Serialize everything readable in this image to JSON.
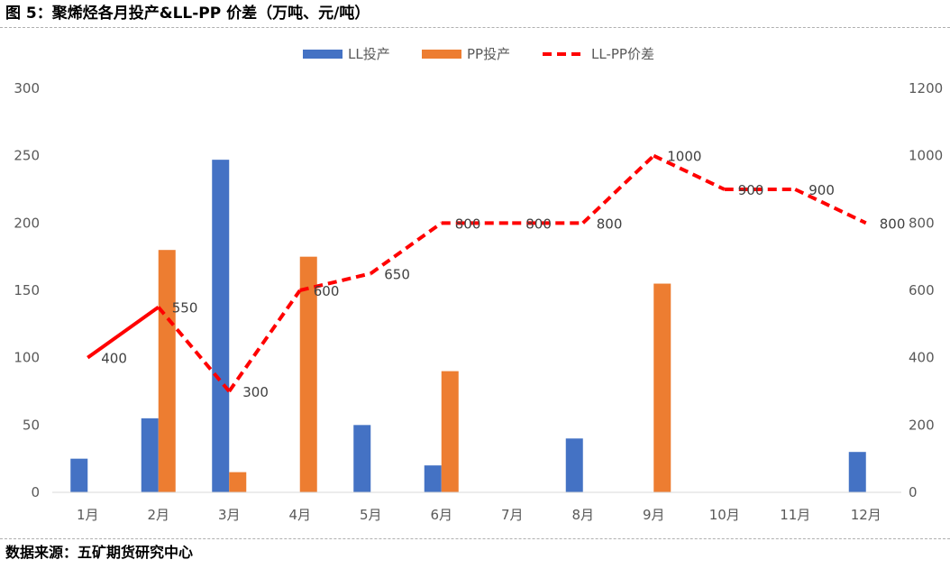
{
  "header": {
    "title": "图 5：聚烯烃各月投产&LL-PP 价差（万吨、元/吨）"
  },
  "footer": {
    "source": "数据来源：五矿期货研究中心"
  },
  "colors": {
    "ll": "#4472C4",
    "pp": "#ED7D31",
    "spread": "#FF0000"
  },
  "chart_data": {
    "type": "bar",
    "title": "",
    "categories": [
      "1月",
      "2月",
      "3月",
      "4月",
      "5月",
      "6月",
      "7月",
      "8月",
      "9月",
      "10月",
      "11月",
      "12月"
    ],
    "series": [
      {
        "name": "LL投产",
        "type": "bar",
        "axis": "left",
        "values": [
          25,
          55,
          247,
          0,
          50,
          20,
          0,
          40,
          0,
          0,
          0,
          30
        ]
      },
      {
        "name": "PP投产",
        "type": "bar",
        "axis": "left",
        "values": [
          0,
          180,
          15,
          175,
          0,
          90,
          0,
          0,
          155,
          0,
          0,
          0
        ]
      },
      {
        "name": "LL-PP价差",
        "type": "line",
        "axis": "right",
        "values": [
          400,
          550,
          300,
          600,
          650,
          800,
          800,
          800,
          1000,
          900,
          900,
          800
        ],
        "data_labels": [
          "400",
          "550",
          "300",
          "600",
          "650",
          "800",
          "800",
          "800",
          "1000",
          "900",
          "900",
          "800"
        ],
        "solid_until_index": 1
      }
    ],
    "y_left": {
      "min": 0,
      "max": 300,
      "ticks": [
        "0",
        "50",
        "100",
        "150",
        "200",
        "250",
        "300"
      ]
    },
    "y_right": {
      "min": 0,
      "max": 1200,
      "ticks": [
        "0",
        "200",
        "400",
        "600",
        "800",
        "1000",
        "1200"
      ]
    },
    "grid": false,
    "legend": "top-center"
  }
}
